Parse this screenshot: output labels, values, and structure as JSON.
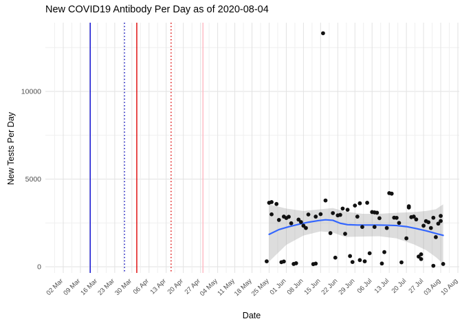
{
  "title": "New COVID19 Antibody Per Day as of 2020-08-04",
  "chart_data": {
    "type": "scatter",
    "title": "New COVID19 Antibody Per Day as of 2020-08-04",
    "xlabel": "Date",
    "ylabel": "New Tests Per Day",
    "ylim": [
      0,
      13920
    ],
    "y_ticks": [
      0,
      5000,
      10000
    ],
    "grid": "major weekly + minor half-week vertical, major 5000 + minor 2500 horizontal, light gray on white",
    "legend_position": "none",
    "x_ticks": [
      {
        "label": "02 Mar",
        "date": "2020-03-02"
      },
      {
        "label": "09 Mar",
        "date": "2020-03-09"
      },
      {
        "label": "16 Mar",
        "date": "2020-03-16"
      },
      {
        "label": "23 Mar",
        "date": "2020-03-23"
      },
      {
        "label": "30 Mar",
        "date": "2020-03-30"
      },
      {
        "label": "06 Apr",
        "date": "2020-04-06"
      },
      {
        "label": "13 Apr",
        "date": "2020-04-13"
      },
      {
        "label": "20 Apr",
        "date": "2020-04-20"
      },
      {
        "label": "27 Apr",
        "date": "2020-04-27"
      },
      {
        "label": "04 May",
        "date": "2020-05-04"
      },
      {
        "label": "11 May",
        "date": "2020-05-11"
      },
      {
        "label": "18 May",
        "date": "2020-05-18"
      },
      {
        "label": "25 May",
        "date": "2020-05-25"
      },
      {
        "label": "01 Jun",
        "date": "2020-06-01"
      },
      {
        "label": "08 Jun",
        "date": "2020-06-08"
      },
      {
        "label": "15 Jun",
        "date": "2020-06-15"
      },
      {
        "label": "22 Jun",
        "date": "2020-06-22"
      },
      {
        "label": "29 Jun",
        "date": "2020-06-29"
      },
      {
        "label": "06 Jul",
        "date": "2020-07-06"
      },
      {
        "label": "13 Jul",
        "date": "2020-07-13"
      },
      {
        "label": "20 Jul",
        "date": "2020-07-20"
      },
      {
        "label": "27 Jul",
        "date": "2020-07-27"
      },
      {
        "label": "03 Aug",
        "date": "2020-08-03"
      },
      {
        "label": "10 Aug",
        "date": "2020-08-10"
      }
    ],
    "vlines": [
      {
        "date": "2020-03-13",
        "color": "#0000CD",
        "style": "solid"
      },
      {
        "date": "2020-03-27",
        "color": "#0000B8",
        "style": "dotted"
      },
      {
        "date": "2020-04-01",
        "color": "#DD0000",
        "style": "solid"
      },
      {
        "date": "2020-04-15",
        "color": "#DD0000",
        "style": "dotted"
      },
      {
        "date": "2020-04-28",
        "color": "#FFB6C1",
        "style": "solid"
      }
    ],
    "points": [
      [
        "2020-05-24",
        310
      ],
      [
        "2020-05-25",
        3650
      ],
      [
        "2020-05-26",
        3690
      ],
      [
        "2020-05-26",
        2990
      ],
      [
        "2020-05-28",
        3580
      ],
      [
        "2020-05-29",
        2670
      ],
      [
        "2020-05-30",
        260
      ],
      [
        "2020-05-31",
        2860
      ],
      [
        "2020-05-31",
        300
      ],
      [
        "2020-06-01",
        2780
      ],
      [
        "2020-06-02",
        2850
      ],
      [
        "2020-06-03",
        2480
      ],
      [
        "2020-06-04",
        160
      ],
      [
        "2020-06-05",
        200
      ],
      [
        "2020-06-06",
        2690
      ],
      [
        "2020-06-07",
        2550
      ],
      [
        "2020-06-08",
        2340
      ],
      [
        "2020-06-09",
        2210
      ],
      [
        "2020-06-10",
        2980
      ],
      [
        "2020-06-12",
        150
      ],
      [
        "2020-06-13",
        2860
      ],
      [
        "2020-06-13",
        180
      ],
      [
        "2020-06-15",
        3000
      ],
      [
        "2020-06-16",
        13320
      ],
      [
        "2020-06-17",
        3780
      ],
      [
        "2020-06-19",
        1920
      ],
      [
        "2020-06-20",
        3060
      ],
      [
        "2020-06-21",
        520
      ],
      [
        "2020-06-22",
        2930
      ],
      [
        "2020-06-23",
        2960
      ],
      [
        "2020-06-24",
        3320
      ],
      [
        "2020-06-25",
        1880
      ],
      [
        "2020-06-26",
        3250
      ],
      [
        "2020-06-27",
        610
      ],
      [
        "2020-06-28",
        270
      ],
      [
        "2020-06-29",
        3490
      ],
      [
        "2020-06-30",
        2860
      ],
      [
        "2020-07-01",
        3620
      ],
      [
        "2020-07-01",
        380
      ],
      [
        "2020-07-02",
        2270
      ],
      [
        "2020-07-03",
        310
      ],
      [
        "2020-07-04",
        3650
      ],
      [
        "2020-07-05",
        770
      ],
      [
        "2020-07-06",
        3120
      ],
      [
        "2020-07-07",
        3100
      ],
      [
        "2020-07-07",
        2270
      ],
      [
        "2020-07-08",
        3080
      ],
      [
        "2020-07-09",
        2770
      ],
      [
        "2020-07-10",
        185
      ],
      [
        "2020-07-11",
        835
      ],
      [
        "2020-07-12",
        2210
      ],
      [
        "2020-07-13",
        4200
      ],
      [
        "2020-07-14",
        4170
      ],
      [
        "2020-07-15",
        2800
      ],
      [
        "2020-07-16",
        2790
      ],
      [
        "2020-07-17",
        2500
      ],
      [
        "2020-07-18",
        250
      ],
      [
        "2020-07-20",
        1620
      ],
      [
        "2020-07-21",
        3380
      ],
      [
        "2020-07-21",
        3450
      ],
      [
        "2020-07-22",
        2830
      ],
      [
        "2020-07-23",
        2860
      ],
      [
        "2020-07-24",
        2700
      ],
      [
        "2020-07-25",
        580
      ],
      [
        "2020-07-26",
        440
      ],
      [
        "2020-07-26",
        710
      ],
      [
        "2020-07-27",
        2340
      ],
      [
        "2020-07-28",
        2600
      ],
      [
        "2020-07-29",
        2540
      ],
      [
        "2020-07-30",
        2210
      ],
      [
        "2020-07-31",
        2795
      ],
      [
        "2020-07-31",
        55
      ],
      [
        "2020-08-01",
        1690
      ],
      [
        "2020-08-02",
        2460
      ],
      [
        "2020-08-03",
        2900
      ],
      [
        "2020-08-03",
        2610
      ],
      [
        "2020-08-04",
        160
      ]
    ],
    "smooth_line": {
      "color": "#3366FF",
      "points": [
        [
          "2020-05-25",
          1850
        ],
        [
          "2020-05-29",
          2120
        ],
        [
          "2020-06-02",
          2280
        ],
        [
          "2020-06-06",
          2420
        ],
        [
          "2020-06-10",
          2540
        ],
        [
          "2020-06-14",
          2630
        ],
        [
          "2020-06-17",
          2680
        ],
        [
          "2020-06-20",
          2650
        ],
        [
          "2020-06-23",
          2480
        ],
        [
          "2020-06-26",
          2400
        ],
        [
          "2020-06-30",
          2380
        ],
        [
          "2020-07-04",
          2380
        ],
        [
          "2020-07-08",
          2380
        ],
        [
          "2020-07-12",
          2370
        ],
        [
          "2020-07-16",
          2350
        ],
        [
          "2020-07-20",
          2290
        ],
        [
          "2020-07-24",
          2180
        ],
        [
          "2020-07-28",
          2050
        ],
        [
          "2020-08-01",
          1900
        ],
        [
          "2020-08-04",
          1790
        ]
      ]
    },
    "ribbon": {
      "color": "#9E9E9E",
      "opacity": 0.35,
      "upper": [
        [
          "2020-05-25",
          3560
        ],
        [
          "2020-06-01",
          3320
        ],
        [
          "2020-06-08",
          3180
        ],
        [
          "2020-06-15",
          3280
        ],
        [
          "2020-06-20",
          3350
        ],
        [
          "2020-06-25",
          3150
        ],
        [
          "2020-07-02",
          3020
        ],
        [
          "2020-07-09",
          3020
        ],
        [
          "2020-07-16",
          3080
        ],
        [
          "2020-07-23",
          3120
        ],
        [
          "2020-07-28",
          3180
        ],
        [
          "2020-08-01",
          3280
        ],
        [
          "2020-08-04",
          3560
        ]
      ],
      "lower": [
        [
          "2020-05-25",
          300
        ],
        [
          "2020-06-01",
          1250
        ],
        [
          "2020-06-08",
          1780
        ],
        [
          "2020-06-15",
          2020
        ],
        [
          "2020-06-20",
          1950
        ],
        [
          "2020-06-25",
          1700
        ],
        [
          "2020-07-02",
          1720
        ],
        [
          "2020-07-09",
          1740
        ],
        [
          "2020-07-16",
          1620
        ],
        [
          "2020-07-23",
          1280
        ],
        [
          "2020-07-28",
          950
        ],
        [
          "2020-08-01",
          550
        ],
        [
          "2020-08-04",
          170
        ]
      ]
    },
    "colors": {
      "point": "#111111",
      "smooth": "#3366FF",
      "ribbon": "#9E9E9E",
      "grid_major": "#E2E2E2",
      "grid_minor": "#EFEFEF",
      "axis_text": "#4D4D4D",
      "title_text": "#000000"
    }
  }
}
